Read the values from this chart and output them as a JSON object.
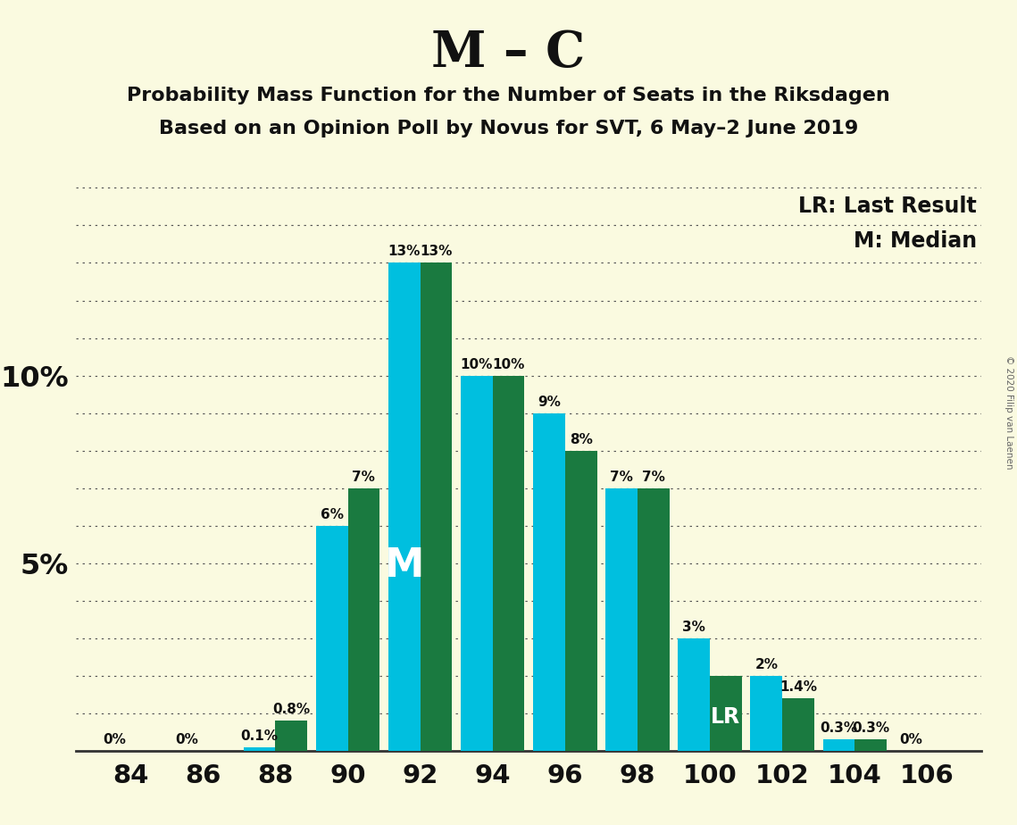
{
  "title_main": "M – C",
  "title_sub1": "Probability Mass Function for the Number of Seats in the Riksdagen",
  "title_sub2": "Based on an Opinion Poll by Novus for SVT, 6 May–2 June 2019",
  "copyright": "© 2020 Filip van Laenen",
  "seats": [
    84,
    86,
    88,
    90,
    92,
    94,
    96,
    98,
    100,
    102,
    104,
    106
  ],
  "cyan_values": [
    0.0,
    0.0,
    0.1,
    6.0,
    13.0,
    10.0,
    9.0,
    7.0,
    3.0,
    2.0,
    0.3,
    0.0
  ],
  "green_values": [
    0.0,
    0.0,
    0.8,
    7.0,
    13.0,
    10.0,
    8.0,
    7.0,
    2.0,
    1.4,
    0.3,
    0.0
  ],
  "cyan_labels": [
    "0%",
    "0%",
    "0.1%",
    "6%",
    "13%",
    "10%",
    "9%",
    "7%",
    "3%",
    "2%",
    "0.3%",
    "0%"
  ],
  "green_labels": [
    "",
    "",
    "0.8%",
    "7%",
    "13%",
    "10%",
    "8%",
    "7%",
    "",
    "1.4%",
    "0.3%",
    ""
  ],
  "cyan_label_left": [
    true,
    true,
    true,
    true,
    true,
    true,
    true,
    false,
    false,
    false,
    false,
    true
  ],
  "median_seat": 92,
  "lr_seat": 100,
  "cyan_color": "#00BFDF",
  "green_color": "#1A7A40",
  "background_color": "#FAFAE0",
  "ylim_max": 15.5,
  "bar_width": 0.44,
  "legend_lr": "LR: Last Result",
  "legend_m": "M: Median",
  "cyan_special_labels_above": [
    false,
    false,
    false,
    false,
    false,
    false,
    false,
    false,
    false,
    false,
    false,
    false
  ]
}
